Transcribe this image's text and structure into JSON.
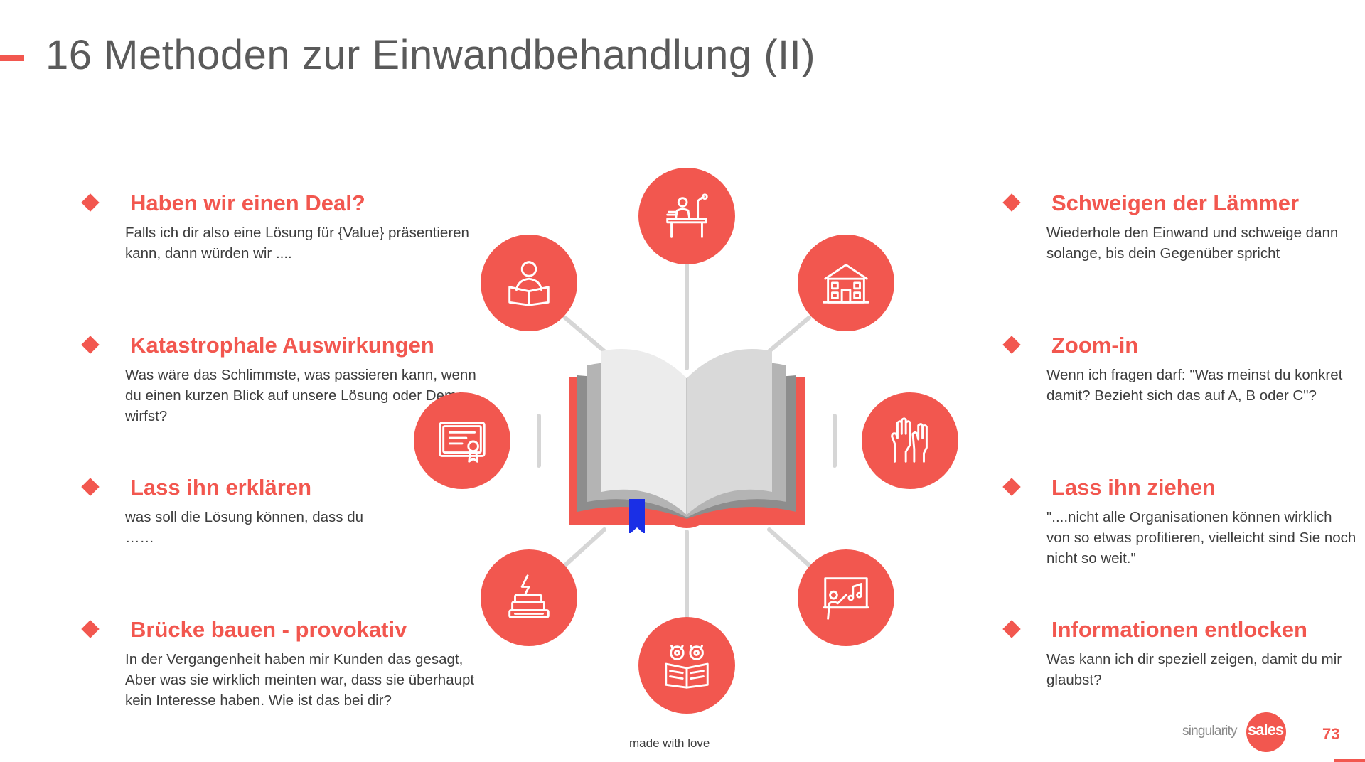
{
  "slide": {
    "title": "16 Methoden zur Einwandbehandlung (II)",
    "page_number": "73",
    "footer_note": "made with love",
    "brand": {
      "part1": "singularity",
      "part2": "sales"
    },
    "accent_color": "#f2574f",
    "bookmark_color": "#1a2fe6"
  },
  "left_methods": [
    {
      "title": "Haben wir einen Deal?",
      "body": "Falls ich dir also eine Lösung für {Value} präsentieren kann, dann würden wir ...."
    },
    {
      "title": "Katastrophale Auswirkungen",
      "body": "Was wäre das Schlimmste, was passieren kann, wenn du einen kurzen Blick auf unsere Lösung oder Demo wirfst?"
    },
    {
      "title": "Lass ihn erklären",
      "body": "was soll die Lösung können, dass du ……"
    },
    {
      "title": "Brücke bauen - provokativ",
      "body": "In der Vergangenheit haben mir Kunden das gesagt, Aber was sie wirklich meinten war, dass sie überhaupt kein Interesse haben. Wie ist das bei dir?"
    }
  ],
  "right_methods": [
    {
      "title": "Schweigen der Lämmer",
      "body": "Wiederhole den Einwand und schweige dann solange, bis dein Gegenüber spricht"
    },
    {
      "title": "Zoom-in",
      "body": "Wenn ich fragen darf: \"Was meinst du konkret damit? Bezieht sich das auf A, B oder C\"?"
    },
    {
      "title": "Lass ihn ziehen",
      "body": "\"....nicht alle Organisationen können wirklich von so etwas profitieren, vielleicht sind Sie noch nicht so weit.\""
    },
    {
      "title": "Informationen entlocken",
      "body": "Was kann ich dir speziell zeigen, damit du mir glaubst?"
    }
  ],
  "icons": [
    "desk-study-icon",
    "school-building-icon",
    "raised-hands-icon",
    "teaching-board-icon",
    "owls-reading-icon",
    "books-stack-icon",
    "certificate-icon",
    "student-reading-icon"
  ]
}
